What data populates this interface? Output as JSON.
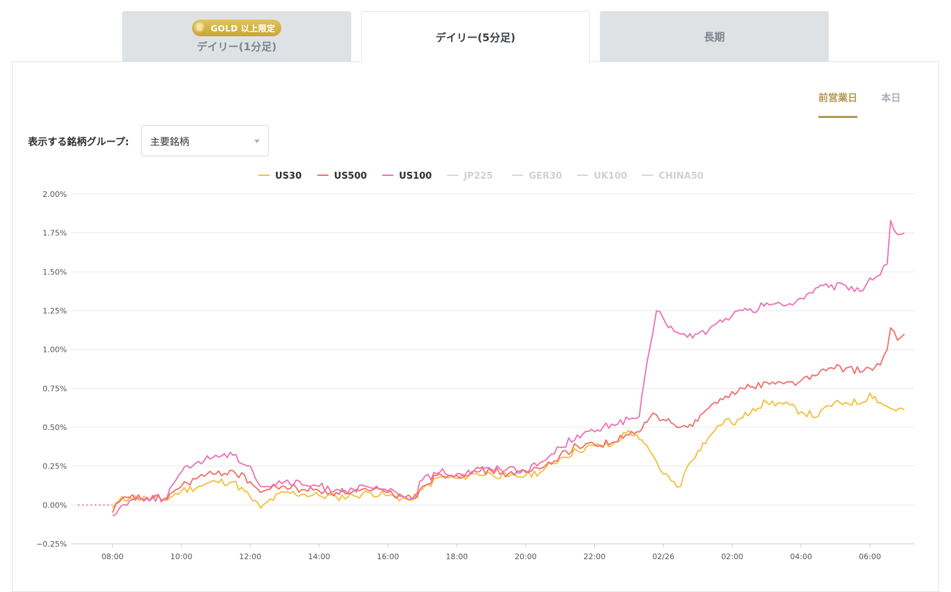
{
  "tabs": {
    "daily1": {
      "badge": "GOLD 以上限定",
      "label": "デイリー(1分足)"
    },
    "daily5": {
      "label": "デイリー(5分足)"
    },
    "long": {
      "label": "長期"
    }
  },
  "day_tabs": {
    "prev": "前営業日",
    "today": "本日"
  },
  "group": {
    "label": "表示する銘柄グループ:",
    "value": "主要銘柄"
  },
  "chart_data": {
    "type": "line",
    "yticks": [
      "2.00%",
      "1.75%",
      "1.50%",
      "1.25%",
      "1.00%",
      "0.75%",
      "0.50%",
      "0.25%",
      "0.00%",
      "−0.25%"
    ],
    "ylim": [
      -0.25,
      2.0
    ],
    "xticks": [
      {
        "h": 8,
        "label": "08:00"
      },
      {
        "h": 10,
        "label": "10:00"
      },
      {
        "h": 12,
        "label": "12:00"
      },
      {
        "h": 14,
        "label": "14:00"
      },
      {
        "h": 16,
        "label": "16:00"
      },
      {
        "h": 18,
        "label": "18:00"
      },
      {
        "h": 20,
        "label": "20:00"
      },
      {
        "h": 22,
        "label": "22:00"
      },
      {
        "h": 24,
        "label": "02/26"
      },
      {
        "h": 26,
        "label": "02:00"
      },
      {
        "h": 28,
        "label": "04:00"
      },
      {
        "h": 30,
        "label": "06:00"
      }
    ],
    "xlim_hours": [
      6.8,
      31.3
    ],
    "legend_position": "top-center",
    "grid": true,
    "series": [
      {
        "name": "US30",
        "color": "#f5bd3a",
        "active": true,
        "points": [
          [
            8,
            -0.02
          ],
          [
            8.2,
            0.03
          ],
          [
            8.5,
            0.05
          ],
          [
            9,
            0.04
          ],
          [
            9.5,
            0.03
          ],
          [
            10,
            0.09
          ],
          [
            10.5,
            0.12
          ],
          [
            11,
            0.15
          ],
          [
            11.5,
            0.15
          ],
          [
            12,
            0.05
          ],
          [
            12.3,
            -0.02
          ],
          [
            12.5,
            0.02
          ],
          [
            13,
            0.08
          ],
          [
            13.5,
            0.07
          ],
          [
            14,
            0.06
          ],
          [
            14.5,
            0.05
          ],
          [
            15,
            0.06
          ],
          [
            15.5,
            0.08
          ],
          [
            16,
            0.06
          ],
          [
            16.5,
            0.04
          ],
          [
            16.7,
            0.03
          ],
          [
            17,
            0.1
          ],
          [
            17.5,
            0.18
          ],
          [
            18,
            0.17
          ],
          [
            18.5,
            0.2
          ],
          [
            19,
            0.2
          ],
          [
            19.5,
            0.18
          ],
          [
            20,
            0.19
          ],
          [
            20.5,
            0.22
          ],
          [
            21,
            0.3
          ],
          [
            21.5,
            0.35
          ],
          [
            22,
            0.38
          ],
          [
            22.5,
            0.38
          ],
          [
            23,
            0.48
          ],
          [
            23.3,
            0.42
          ],
          [
            23.6,
            0.35
          ],
          [
            23.8,
            0.28
          ],
          [
            24,
            0.2
          ],
          [
            24.3,
            0.15
          ],
          [
            24.5,
            0.12
          ],
          [
            24.7,
            0.25
          ],
          [
            25,
            0.35
          ],
          [
            25.3,
            0.43
          ],
          [
            25.5,
            0.48
          ],
          [
            25.8,
            0.55
          ],
          [
            26,
            0.52
          ],
          [
            26.3,
            0.56
          ],
          [
            26.6,
            0.62
          ],
          [
            27,
            0.66
          ],
          [
            27.5,
            0.65
          ],
          [
            28,
            0.6
          ],
          [
            28.5,
            0.57
          ],
          [
            28.8,
            0.64
          ],
          [
            29.3,
            0.66
          ],
          [
            29.8,
            0.66
          ],
          [
            30,
            0.72
          ],
          [
            30.3,
            0.66
          ],
          [
            30.6,
            0.62
          ],
          [
            31,
            0.61
          ]
        ]
      },
      {
        "name": "US500",
        "color": "#ef6e67",
        "active": true,
        "points": [
          [
            8,
            -0.05
          ],
          [
            8.2,
            0.02
          ],
          [
            8.5,
            0.05
          ],
          [
            9,
            0.04
          ],
          [
            9.5,
            0.04
          ],
          [
            10,
            0.12
          ],
          [
            10.5,
            0.18
          ],
          [
            11,
            0.2
          ],
          [
            11.5,
            0.22
          ],
          [
            12,
            0.15
          ],
          [
            12.3,
            0.08
          ],
          [
            12.5,
            0.1
          ],
          [
            13,
            0.12
          ],
          [
            13.5,
            0.1
          ],
          [
            14,
            0.09
          ],
          [
            14.5,
            0.08
          ],
          [
            15,
            0.09
          ],
          [
            15.5,
            0.09
          ],
          [
            16,
            0.08
          ],
          [
            16.5,
            0.05
          ],
          [
            16.7,
            0.04
          ],
          [
            17,
            0.12
          ],
          [
            17.5,
            0.2
          ],
          [
            18,
            0.19
          ],
          [
            18.5,
            0.22
          ],
          [
            19,
            0.22
          ],
          [
            19.5,
            0.2
          ],
          [
            20,
            0.21
          ],
          [
            20.5,
            0.24
          ],
          [
            21,
            0.32
          ],
          [
            21.5,
            0.38
          ],
          [
            22,
            0.39
          ],
          [
            22.5,
            0.4
          ],
          [
            23,
            0.45
          ],
          [
            23.3,
            0.47
          ],
          [
            23.6,
            0.56
          ],
          [
            23.8,
            0.58
          ],
          [
            24,
            0.55
          ],
          [
            24.3,
            0.52
          ],
          [
            24.5,
            0.5
          ],
          [
            24.7,
            0.5
          ],
          [
            25,
            0.54
          ],
          [
            25.3,
            0.62
          ],
          [
            25.5,
            0.66
          ],
          [
            25.8,
            0.7
          ],
          [
            26,
            0.73
          ],
          [
            26.3,
            0.75
          ],
          [
            26.6,
            0.76
          ],
          [
            27,
            0.79
          ],
          [
            27.5,
            0.78
          ],
          [
            28,
            0.8
          ],
          [
            28.5,
            0.84
          ],
          [
            28.8,
            0.88
          ],
          [
            29.3,
            0.88
          ],
          [
            29.8,
            0.86
          ],
          [
            30,
            0.88
          ],
          [
            30.3,
            0.9
          ],
          [
            30.5,
            1.0
          ],
          [
            30.6,
            1.14
          ],
          [
            30.8,
            1.06
          ],
          [
            31,
            1.1
          ]
        ]
      },
      {
        "name": "US100",
        "color": "#ee6fb3",
        "active": true,
        "points": [
          [
            8,
            -0.07
          ],
          [
            8.2,
            -0.02
          ],
          [
            8.5,
            0.03
          ],
          [
            9,
            0.05
          ],
          [
            9.5,
            0.04
          ],
          [
            10,
            0.21
          ],
          [
            10.5,
            0.28
          ],
          [
            11,
            0.32
          ],
          [
            11.5,
            0.32
          ],
          [
            12,
            0.25
          ],
          [
            12.3,
            0.12
          ],
          [
            12.5,
            0.12
          ],
          [
            13,
            0.15
          ],
          [
            13.5,
            0.13
          ],
          [
            14,
            0.12
          ],
          [
            14.5,
            0.1
          ],
          [
            15,
            0.1
          ],
          [
            15.5,
            0.11
          ],
          [
            16,
            0.09
          ],
          [
            16.5,
            0.05
          ],
          [
            16.7,
            0.04
          ],
          [
            17,
            0.16
          ],
          [
            17.5,
            0.21
          ],
          [
            18,
            0.2
          ],
          [
            18.5,
            0.22
          ],
          [
            19,
            0.23
          ],
          [
            19.5,
            0.24
          ],
          [
            20,
            0.22
          ],
          [
            20.5,
            0.28
          ],
          [
            21,
            0.37
          ],
          [
            21.5,
            0.45
          ],
          [
            22,
            0.47
          ],
          [
            22.5,
            0.52
          ],
          [
            23,
            0.55
          ],
          [
            23.3,
            0.57
          ],
          [
            23.6,
            1.0
          ],
          [
            23.8,
            1.25
          ],
          [
            24,
            1.2
          ],
          [
            24.3,
            1.12
          ],
          [
            24.5,
            1.1
          ],
          [
            24.7,
            1.08
          ],
          [
            25,
            1.1
          ],
          [
            25.3,
            1.12
          ],
          [
            25.5,
            1.16
          ],
          [
            25.8,
            1.2
          ],
          [
            26,
            1.22
          ],
          [
            26.3,
            1.25
          ],
          [
            26.6,
            1.24
          ],
          [
            27,
            1.3
          ],
          [
            27.5,
            1.28
          ],
          [
            28,
            1.33
          ],
          [
            28.5,
            1.4
          ],
          [
            28.8,
            1.4
          ],
          [
            29.3,
            1.41
          ],
          [
            29.8,
            1.38
          ],
          [
            30,
            1.46
          ],
          [
            30.3,
            1.48
          ],
          [
            30.5,
            1.55
          ],
          [
            30.6,
            1.83
          ],
          [
            30.8,
            1.74
          ],
          [
            31,
            1.75
          ]
        ]
      },
      {
        "name": "JP225",
        "color": "#cfd2d5",
        "active": false,
        "points": []
      },
      {
        "name": "GER30",
        "color": "#cfd2d5",
        "active": false,
        "points": []
      },
      {
        "name": "UK100",
        "color": "#cfd2d5",
        "active": false,
        "points": []
      },
      {
        "name": "CHINA50",
        "color": "#cfd2d5",
        "active": false,
        "points": []
      }
    ]
  }
}
